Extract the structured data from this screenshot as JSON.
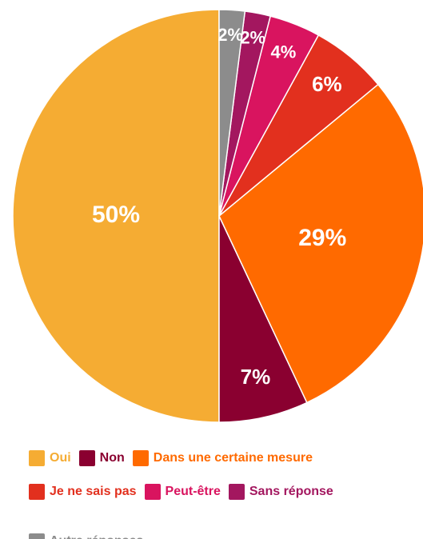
{
  "chart_data": {
    "type": "pie",
    "categories": [
      "Oui",
      "Non",
      "Dans une certaine mesure",
      "Je ne sais pas",
      "Peut-être",
      "Sans réponse",
      "Autre réponses"
    ],
    "values": [
      50,
      7,
      29,
      6,
      4,
      2,
      2
    ],
    "value_labels": [
      "50%",
      "7%",
      "29%",
      "6%",
      "4%",
      "2%",
      "2%"
    ],
    "colors": [
      "#f5ac33",
      "#8a0030",
      "#ff6a00",
      "#e2301e",
      "#d9145f",
      "#a3175f",
      "#8c8c8c"
    ]
  }
}
